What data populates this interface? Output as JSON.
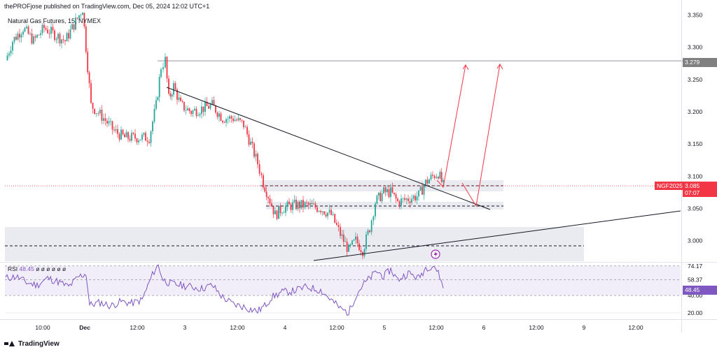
{
  "header": {
    "publisher_line": "thePROFjose published on TradingView.com, Dec 05, 2024 12:02 UTC+1",
    "symbol_title": "Natural Gas Futures, 15, NYMEX"
  },
  "footer": {
    "brand": "TradingView"
  },
  "price_scale": {
    "ticks": [
      "3.350",
      "3.300",
      "3.250",
      "3.200",
      "3.150",
      "3.100",
      "3.050",
      "3.000"
    ],
    "target_label": "3.279",
    "ticker_label": "NGF2025",
    "current_price": "3.085",
    "countdown": "07:07"
  },
  "rsi_scale": {
    "ticks": [
      "74.17",
      "58.37",
      "40.00",
      "20.00"
    ],
    "current_value": "48.45",
    "label_name": "RSI",
    "label_value": "48.45",
    "label_tail": "ø ø ø ø ø ø"
  },
  "time_axis": {
    "labels": [
      "10:00",
      "Dec",
      "12:00",
      "3",
      "12:00",
      "4",
      "12:00",
      "5",
      "12:00",
      "6",
      "12:00",
      "9",
      "12:00"
    ]
  },
  "colors": {
    "up": "#26a69a",
    "down": "#f23645",
    "rsi_line": "#7e57c2",
    "zone_fill": "#e0e3eb",
    "rsi_band": "#ede7f6",
    "projection_arrow": "#f23645"
  },
  "chart_data": [
    {
      "type": "candlestick",
      "title": "Natural Gas Futures, 15, NYMEX",
      "ylim": [
        2.97,
        3.36
      ],
      "x_range": [
        "Dec 02 06:00",
        "Dec 09 18:00"
      ],
      "price_path": [
        [
          0,
          3.28
        ],
        [
          10,
          3.31
        ],
        [
          25,
          3.33
        ],
        [
          40,
          3.31
        ],
        [
          55,
          3.33
        ],
        [
          70,
          3.32
        ],
        [
          85,
          3.31
        ],
        [
          100,
          3.34
        ],
        [
          110,
          3.36
        ],
        [
          122,
          3.21
        ],
        [
          140,
          3.19
        ],
        [
          155,
          3.17
        ],
        [
          170,
          3.16
        ],
        [
          190,
          3.16
        ],
        [
          205,
          3.16
        ],
        [
          215,
          3.21
        ],
        [
          222,
          3.27
        ],
        [
          228,
          3.28
        ],
        [
          233,
          3.22
        ],
        [
          240,
          3.24
        ],
        [
          250,
          3.21
        ],
        [
          265,
          3.2
        ],
        [
          280,
          3.205
        ],
        [
          295,
          3.21
        ],
        [
          310,
          3.19
        ],
        [
          325,
          3.19
        ],
        [
          340,
          3.18
        ],
        [
          350,
          3.15
        ],
        [
          360,
          3.12
        ],
        [
          368,
          3.09
        ],
        [
          375,
          3.07
        ],
        [
          385,
          3.04
        ],
        [
          395,
          3.05
        ],
        [
          410,
          3.055
        ],
        [
          430,
          3.055
        ],
        [
          450,
          3.05
        ],
        [
          465,
          3.04
        ],
        [
          478,
          3.01
        ],
        [
          490,
          2.985
        ],
        [
          500,
          3.0
        ],
        [
          510,
          2.985
        ],
        [
          520,
          3.02
        ],
        [
          528,
          3.06
        ],
        [
          540,
          3.075
        ],
        [
          550,
          3.075
        ],
        [
          560,
          3.06
        ],
        [
          575,
          3.065
        ],
        [
          590,
          3.07
        ],
        [
          600,
          3.09
        ],
        [
          610,
          3.1
        ],
        [
          618,
          3.105
        ],
        [
          625,
          3.085
        ]
      ],
      "current_price": 3.085
    },
    {
      "type": "line",
      "title": "RSI",
      "ylim": [
        14,
        78
      ],
      "levels": [
        74.17,
        58.37,
        40.0,
        20.0
      ],
      "series": [
        {
          "name": "RSI",
          "points": [
            [
              0,
              60
            ],
            [
              15,
              62
            ],
            [
              30,
              55
            ],
            [
              45,
              52
            ],
            [
              60,
              60
            ],
            [
              75,
              56
            ],
            [
              90,
              50
            ],
            [
              105,
              62
            ],
            [
              115,
              65
            ],
            [
              120,
              29
            ],
            [
              135,
              32
            ],
            [
              150,
              28
            ],
            [
              165,
              33
            ],
            [
              180,
              31
            ],
            [
              195,
              35
            ],
            [
              205,
              55
            ],
            [
              212,
              68
            ],
            [
              218,
              75
            ],
            [
              225,
              58
            ],
            [
              235,
              54
            ],
            [
              250,
              52
            ],
            [
              265,
              50
            ],
            [
              280,
              48
            ],
            [
              295,
              52
            ],
            [
              310,
              38
            ],
            [
              325,
              30
            ],
            [
              340,
              27
            ],
            [
              350,
              24
            ],
            [
              360,
              22
            ],
            [
              370,
              28
            ],
            [
              380,
              38
            ],
            [
              395,
              44
            ],
            [
              410,
              45
            ],
            [
              430,
              50
            ],
            [
              450,
              46
            ],
            [
              465,
              35
            ],
            [
              478,
              25
            ],
            [
              490,
              20
            ],
            [
              500,
              40
            ],
            [
              510,
              52
            ],
            [
              520,
              60
            ],
            [
              530,
              68
            ],
            [
              540,
              62
            ],
            [
              550,
              70
            ],
            [
              560,
              58
            ],
            [
              575,
              66
            ],
            [
              590,
              60
            ],
            [
              600,
              72
            ],
            [
              612,
              75
            ],
            [
              620,
              62
            ],
            [
              625,
              48.45
            ]
          ]
        }
      ]
    }
  ]
}
